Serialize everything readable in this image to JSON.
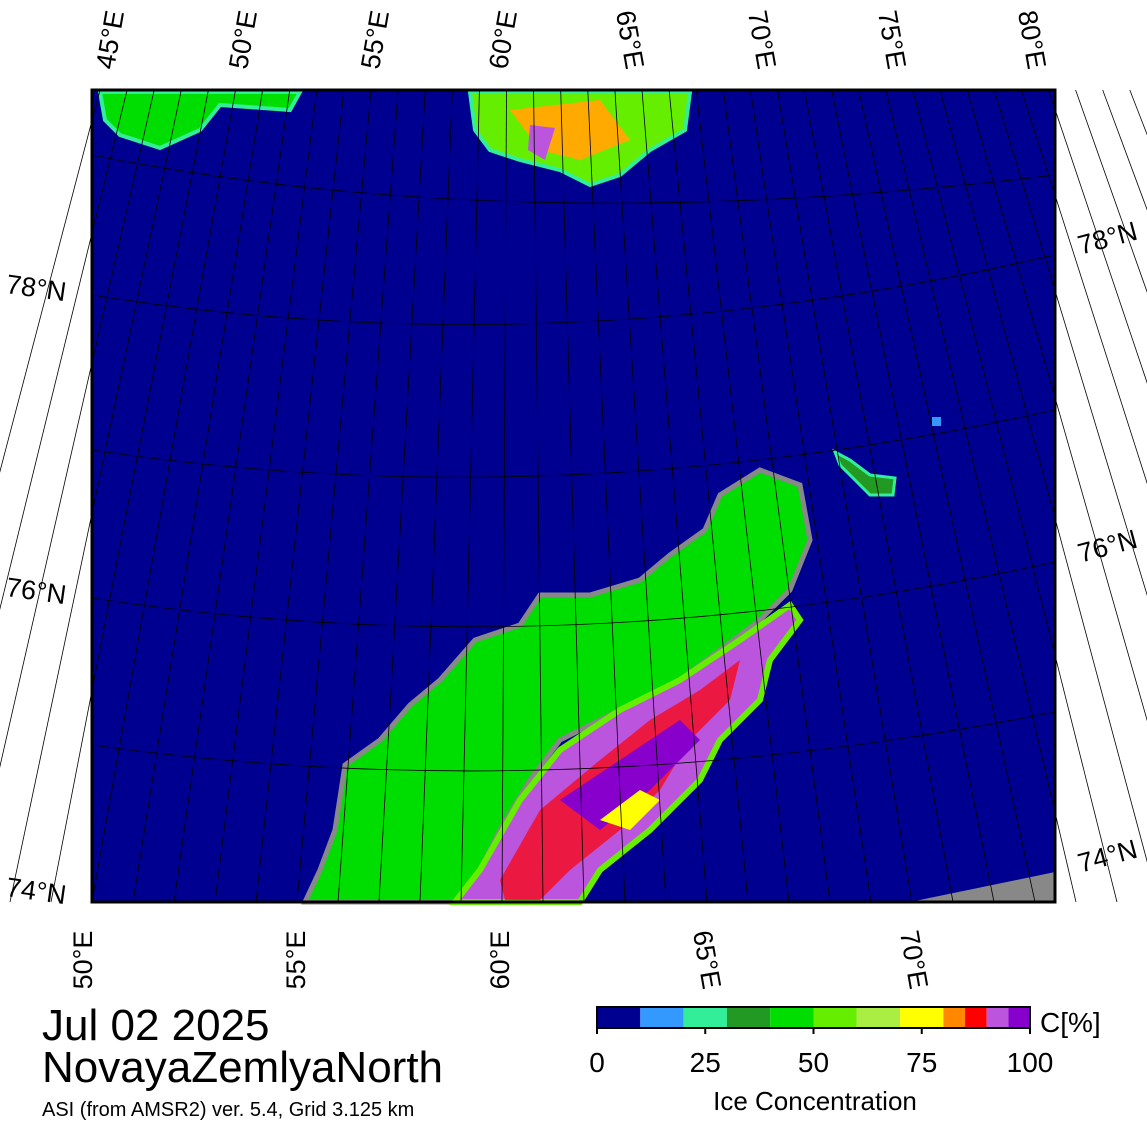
{
  "date": "Jul 02 2025",
  "region": "NovayaZemlyaNorth",
  "source": "ASI (from AMSR2) ver. 5.4,  Grid 3.125 km",
  "top_labels": [
    "45°E",
    "50°E",
    "55°E",
    "60°E",
    "65°E",
    "70°E",
    "75°E",
    "80°E"
  ],
  "bottom_labels": [
    "50°E",
    "55°E",
    "60°E",
    "65°E",
    "70°E"
  ],
  "left_labels": [
    "78°N",
    "76°N",
    "74°N"
  ],
  "right_labels": [
    "78°N",
    "76°N",
    "74°N"
  ],
  "colorbar": {
    "label": "Ice Concentration",
    "unit": "C[%]",
    "lim": [
      0,
      100
    ],
    "ticks": [
      0,
      25,
      50,
      75,
      100
    ],
    "levels": [
      0,
      10,
      20,
      30,
      40,
      50,
      60,
      70,
      80,
      85,
      90,
      95,
      100
    ],
    "colors": [
      "#000090",
      "#3399ff",
      "#33ee99",
      "#229922",
      "#00dd00",
      "#66ee00",
      "#aaee44",
      "#ffff00",
      "#ff8800",
      "#ff0000",
      "#bb55dd",
      "#8800cc"
    ]
  }
}
